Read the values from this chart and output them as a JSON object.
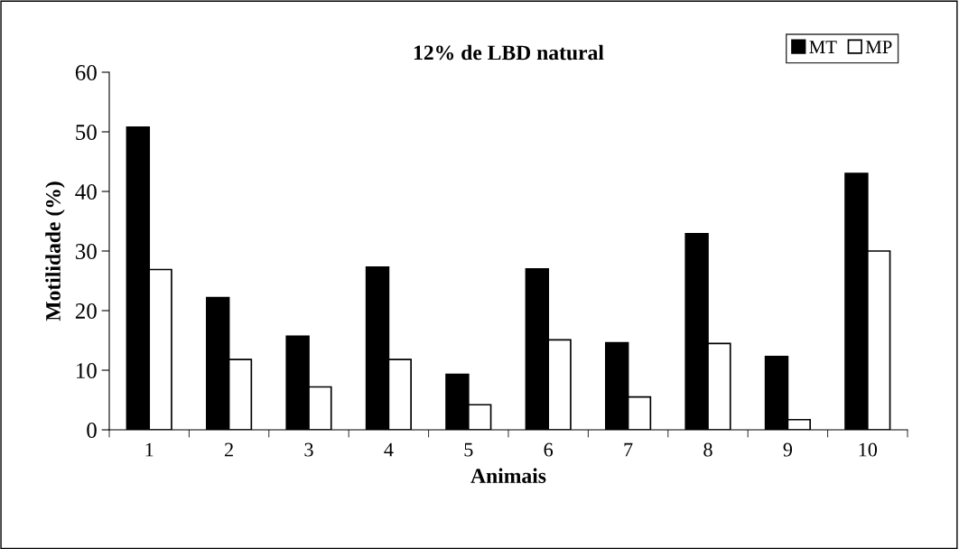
{
  "chart_data": {
    "type": "bar",
    "title": "12% de LBD natural",
    "xlabel": "Animais",
    "ylabel": "Motilidade (%)",
    "categories": [
      "1",
      "2",
      "3",
      "4",
      "5",
      "6",
      "7",
      "8",
      "9",
      "10"
    ],
    "series": [
      {
        "name": "MT",
        "color": "#000000",
        "values": [
          50.8,
          22.2,
          15.7,
          27.3,
          9.3,
          27.0,
          14.6,
          32.9,
          12.3,
          43.0
        ]
      },
      {
        "name": "MP",
        "color": "#ffffff",
        "values": [
          26.9,
          11.8,
          7.2,
          11.8,
          4.2,
          15.1,
          5.5,
          14.5,
          1.7,
          30.0
        ]
      }
    ],
    "ylim": [
      0,
      60
    ],
    "yticks": [
      0,
      10,
      20,
      30,
      40,
      50,
      60
    ],
    "grid": false,
    "legend": "top right"
  }
}
